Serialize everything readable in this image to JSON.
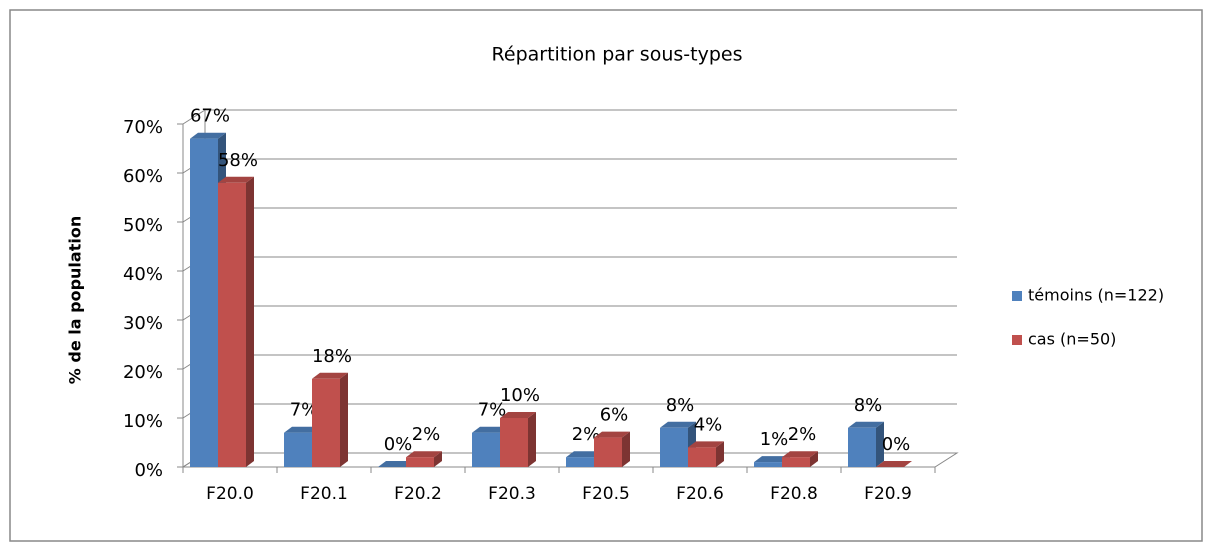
{
  "chart_data": {
    "type": "bar3d",
    "title": "Répartition par sous-types",
    "y_label": "% de la population",
    "categories": [
      "F20.0",
      "F20.1",
      "F20.2",
      "F20.3",
      "F20.5",
      "F20.6",
      "F20.8",
      "F20.9"
    ],
    "series": [
      {
        "name": "témoins (n=122)",
        "color": "#4f81bd",
        "values": [
          67,
          7,
          0,
          7,
          2,
          8,
          1,
          8
        ],
        "value_labels": [
          "67%",
          "7%",
          "0%",
          "7%",
          "2%",
          "8%",
          "1%",
          "8%"
        ]
      },
      {
        "name": "cas (n=50)",
        "color": "#c0504d",
        "values": [
          58,
          18,
          2,
          10,
          6,
          4,
          2,
          0
        ],
        "value_labels": [
          "58%",
          "18%",
          "2%",
          "10%",
          "6%",
          "4%",
          "2%",
          "0%"
        ]
      }
    ],
    "ylim": [
      0,
      70
    ],
    "yticks": [
      {
        "value": 0,
        "label": "0%"
      },
      {
        "value": 10,
        "label": "10%"
      },
      {
        "value": 20,
        "label": "20%"
      },
      {
        "value": 30,
        "label": "30%"
      },
      {
        "value": 40,
        "label": "40%"
      },
      {
        "value": 50,
        "label": "50%"
      },
      {
        "value": 60,
        "label": "60%"
      },
      {
        "value": 70,
        "label": "70%"
      }
    ],
    "grid": true,
    "legend": "right"
  }
}
